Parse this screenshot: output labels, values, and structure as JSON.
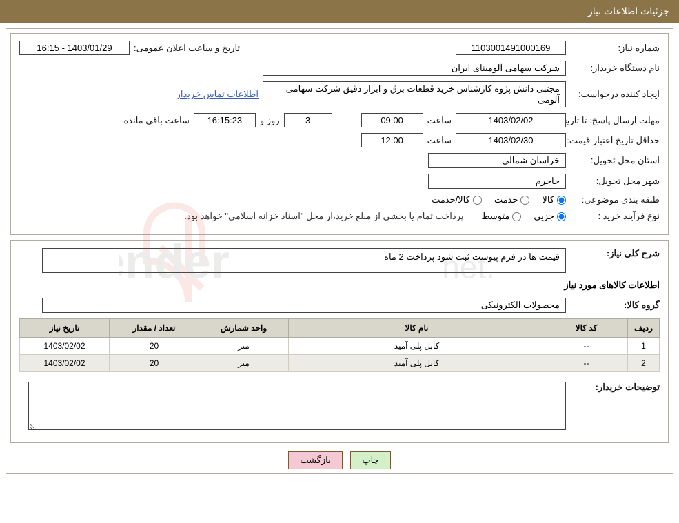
{
  "header": {
    "title": "جزئیات اطلاعات نیاز"
  },
  "need_number": {
    "label": "شماره نیاز:",
    "value": "1103001491000169"
  },
  "announce": {
    "label": "تاریخ و ساعت اعلان عمومی:",
    "value": "1403/01/29 - 16:15"
  },
  "buyer_org": {
    "label": "نام دستگاه خریدار:",
    "value": "شرکت سهامی آلومینای ایران"
  },
  "requester": {
    "label": "ایجاد کننده درخواست:",
    "value": "مجتبی دانش پژوه کارشناس خرید قطعات برق و ابزار دقیق شرکت سهامی آلومی",
    "link": "اطلاعات تماس خریدار"
  },
  "deadline": {
    "label": "مهلت ارسال پاسخ: تا تاریخ:",
    "date": "1403/02/02",
    "time_label": "ساعت",
    "time": "09:00",
    "days_label": "روز و",
    "days": "3",
    "remain_time": "16:15:23",
    "remain_label": "ساعت باقی مانده"
  },
  "validity": {
    "label": "حداقل تاریخ اعتبار قیمت: تا تاریخ:",
    "date": "1403/02/30",
    "time_label": "ساعت",
    "time": "12:00"
  },
  "province": {
    "label": "استان محل تحویل:",
    "value": "خراسان شمالی"
  },
  "city": {
    "label": "شهر محل تحویل:",
    "value": "جاجرم"
  },
  "category": {
    "label": "طبقه بندی موضوعی:",
    "opt_goods": "کالا",
    "opt_service": "خدمت",
    "opt_both": "کالا/خدمت"
  },
  "process": {
    "label": "نوع فرآیند خرید :",
    "opt_partial": "جزیی",
    "opt_medium": "متوسط",
    "note": "پرداخت تمام یا بخشی از مبلغ خرید،ار محل \"اسناد خزانه اسلامی\" خواهد بود."
  },
  "general_desc": {
    "label": "شرح کلی نیاز:",
    "value": "قیمت ها در فرم پیوست ثبت شود  پرداخت 2 ماه"
  },
  "items_title": "اطلاعات کالاهای مورد نیاز",
  "group": {
    "label": "گروه کالا:",
    "value": "محصولات الکترونیکی"
  },
  "table": {
    "headers": {
      "row": "ردیف",
      "code": "کد کالا",
      "name": "نام کالا",
      "unit": "واحد شمارش",
      "qty": "تعداد / مقدار",
      "date": "تاریخ نیاز"
    },
    "rows": [
      {
        "idx": "1",
        "code": "--",
        "name": "کابل پلی آمید",
        "unit": "متر",
        "qty": "20",
        "date": "1403/02/02"
      },
      {
        "idx": "2",
        "code": "--",
        "name": "کابل پلی آمید",
        "unit": "متر",
        "qty": "20",
        "date": "1403/02/02"
      }
    ]
  },
  "buyer_notes": {
    "label": "توضیحات خریدار:",
    "value": ""
  },
  "buttons": {
    "print": "چاپ",
    "back": "بازگشت"
  },
  "watermark": {
    "text": "AriaTender.net",
    "logo_color": "#e44a3a"
  }
}
